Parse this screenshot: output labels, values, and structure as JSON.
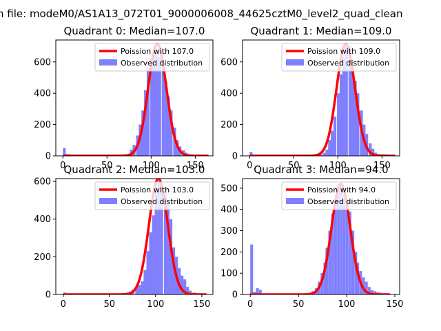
{
  "suptitle": "n file: modeM0/AS1A13_072T01_9000006008_44625cztM0_level2_quad_clean",
  "colors": {
    "bar": "#8080ff",
    "line": "#ff0000",
    "axes": "#000000"
  },
  "chart_data": [
    {
      "type": "bar",
      "title": "Quadrant 0: Median=107.0",
      "xlim": [
        -8,
        170
      ],
      "ylim": [
        0,
        740
      ],
      "xticks": [
        0,
        50,
        100,
        150
      ],
      "yticks": [
        0,
        200,
        400,
        600
      ],
      "legend": {
        "placement": "top-right",
        "entries": [
          "Poission with 107.0",
          "Observed distribution"
        ]
      },
      "series": [
        {
          "name": "Observed distribution",
          "kind": "histogram",
          "bin_width": 3.3,
          "x": [
            0,
            3,
            6,
            10,
            13,
            16,
            20,
            23,
            26,
            30,
            33,
            36,
            40,
            43,
            46,
            50,
            53,
            56,
            60,
            63,
            66,
            70,
            73,
            76,
            79,
            83,
            86,
            89,
            92,
            95,
            99,
            102,
            105,
            108,
            112,
            115,
            118,
            121,
            125,
            128,
            131,
            135,
            138,
            141,
            144,
            148,
            151,
            154,
            157,
            161
          ],
          "values": [
            50,
            12,
            10,
            8,
            8,
            8,
            8,
            8,
            8,
            8,
            8,
            8,
            8,
            8,
            8,
            8,
            8,
            8,
            8,
            8,
            8,
            8,
            8,
            40,
            70,
            130,
            200,
            290,
            420,
            560,
            620,
            690,
            660,
            630,
            580,
            470,
            380,
            290,
            180,
            100,
            60,
            35,
            20,
            12,
            8,
            8,
            8,
            8,
            8,
            8
          ]
        },
        {
          "name": "Poission with 107.0",
          "kind": "line",
          "mean": 107.0,
          "scale": 715,
          "x_range": [
            0,
            165
          ]
        }
      ]
    },
    {
      "type": "bar",
      "title": "Quadrant 1: Median=109.0",
      "xlim": [
        -8,
        170
      ],
      "ylim": [
        0,
        740
      ],
      "xticks": [
        0,
        50,
        100,
        150
      ],
      "yticks": [
        0,
        200,
        400,
        600
      ],
      "legend": {
        "placement": "top-right",
        "entries": [
          "Poission with 109.0",
          "Observed distribution"
        ]
      },
      "series": [
        {
          "name": "Observed distribution",
          "kind": "histogram",
          "bin_width": 3.3,
          "x": [
            0,
            3,
            6,
            10,
            13,
            16,
            20,
            23,
            26,
            30,
            33,
            36,
            40,
            43,
            46,
            50,
            53,
            56,
            60,
            63,
            66,
            70,
            73,
            76,
            79,
            83,
            86,
            89,
            92,
            95,
            99,
            102,
            105,
            108,
            112,
            115,
            118,
            121,
            125,
            128,
            131,
            135,
            138,
            141,
            144,
            148,
            151,
            154,
            157,
            161
          ],
          "values": [
            25,
            8,
            8,
            8,
            8,
            8,
            8,
            8,
            8,
            8,
            8,
            8,
            8,
            8,
            8,
            8,
            8,
            8,
            8,
            8,
            8,
            8,
            8,
            8,
            10,
            20,
            40,
            100,
            160,
            250,
            400,
            520,
            630,
            700,
            700,
            620,
            480,
            400,
            290,
            200,
            140,
            80,
            45,
            20,
            12,
            10,
            10,
            8,
            8,
            8
          ]
        },
        {
          "name": "Poission with 109.0",
          "kind": "line",
          "mean": 109.0,
          "scale": 715,
          "x_range": [
            0,
            165
          ]
        }
      ]
    },
    {
      "type": "bar",
      "title": "Quadrant 2: Median=103.0",
      "xlim": [
        -8,
        162
      ],
      "ylim": [
        0,
        615
      ],
      "xticks": [
        0,
        50,
        100,
        150
      ],
      "yticks": [
        0,
        200,
        400,
        600
      ],
      "legend": {
        "placement": "top-right",
        "entries": [
          "Poission with 103.0",
          "Observed distribution"
        ]
      },
      "series": [
        {
          "name": "Observed distribution",
          "kind": "histogram",
          "bin_width": 3.1,
          "x": [
            0,
            3,
            6,
            9,
            12,
            16,
            19,
            22,
            25,
            28,
            31,
            34,
            37,
            40,
            43,
            47,
            50,
            53,
            56,
            59,
            62,
            65,
            68,
            71,
            74,
            78,
            81,
            84,
            87,
            90,
            93,
            96,
            99,
            102,
            105,
            109,
            112,
            115,
            118,
            121,
            124,
            127,
            130,
            133,
            136,
            140,
            143,
            146,
            149,
            152
          ],
          "values": [
            10,
            6,
            6,
            6,
            6,
            6,
            6,
            6,
            6,
            6,
            6,
            6,
            6,
            6,
            6,
            6,
            6,
            6,
            6,
            6,
            6,
            6,
            10,
            15,
            25,
            40,
            50,
            70,
            130,
            230,
            330,
            420,
            560,
            600,
            580,
            540,
            480,
            400,
            250,
            200,
            140,
            100,
            80,
            40,
            20,
            10,
            8,
            6,
            6,
            6
          ]
        },
        {
          "name": "Poission with 103.0",
          "kind": "line",
          "mean": 103.0,
          "scale": 615,
          "x_range": [
            0,
            155
          ]
        }
      ]
    },
    {
      "type": "bar",
      "title": "Quadrant 3: Median=94.0",
      "xlim": [
        -8,
        155
      ],
      "ylim": [
        0,
        545
      ],
      "xticks": [
        0,
        50,
        100,
        150
      ],
      "yticks": [
        0,
        100,
        200,
        300,
        400,
        500
      ],
      "legend": {
        "placement": "top-right",
        "entries": [
          "Poission with 94.0",
          "Observed distribution"
        ]
      },
      "series": [
        {
          "name": "Observed distribution",
          "kind": "histogram",
          "bin_width": 2.9,
          "x": [
            0,
            3,
            6,
            9,
            12,
            14,
            17,
            20,
            23,
            26,
            29,
            32,
            35,
            38,
            41,
            44,
            46,
            49,
            52,
            55,
            58,
            61,
            64,
            67,
            70,
            73,
            76,
            78,
            81,
            84,
            87,
            90,
            93,
            96,
            99,
            102,
            105,
            108,
            110,
            113,
            116,
            119,
            122,
            125,
            128,
            131,
            134,
            137,
            139,
            142
          ],
          "values": [
            235,
            12,
            30,
            22,
            5,
            5,
            5,
            5,
            5,
            5,
            5,
            5,
            5,
            5,
            5,
            5,
            5,
            5,
            5,
            5,
            5,
            8,
            15,
            30,
            60,
            100,
            150,
            220,
            300,
            380,
            440,
            490,
            520,
            470,
            450,
            390,
            300,
            200,
            150,
            110,
            80,
            60,
            35,
            20,
            15,
            10,
            8,
            5,
            5,
            5
          ]
        },
        {
          "name": "Poission with 94.0",
          "kind": "line",
          "mean": 94.0,
          "scale": 520,
          "x_range": [
            0,
            145
          ]
        }
      ]
    }
  ]
}
